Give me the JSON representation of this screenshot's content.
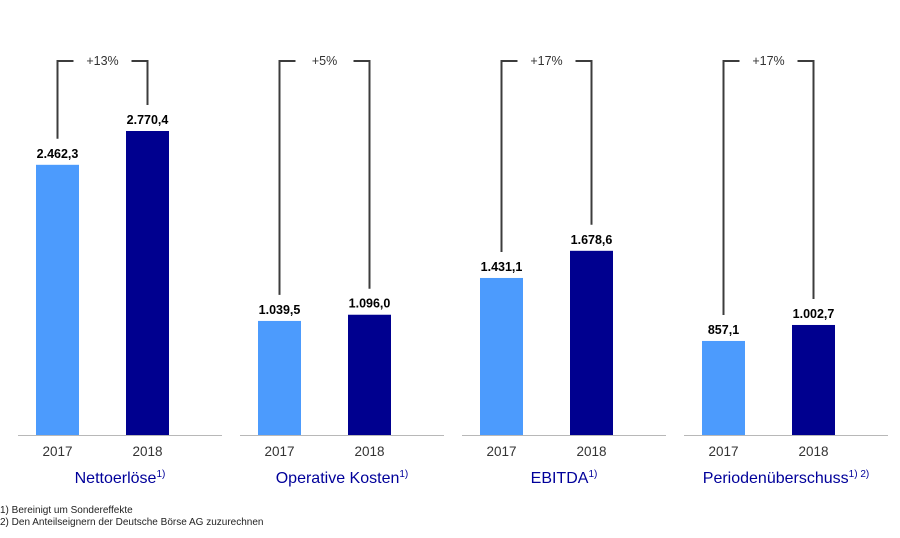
{
  "colors": {
    "y2017": "#4c9bfd",
    "y2018": "#00008f",
    "bracket": "#3c3c3c",
    "axis": "#b8b8b8",
    "category": "#00009a"
  },
  "chart_data": {
    "type": "bar",
    "years": [
      "2017",
      "2018"
    ],
    "groups": [
      {
        "name": "Nettoerlöse",
        "sup": "1)",
        "values": [
          2462.3,
          2770.4
        ],
        "labels": [
          "2.462,3",
          "2.770,4"
        ],
        "change": "+13%"
      },
      {
        "name": "Operative Kosten",
        "sup": "1)",
        "values": [
          1039.5,
          1096.0
        ],
        "labels": [
          "1.039,5",
          "1.096,0"
        ],
        "change": "+5%"
      },
      {
        "name": "EBITDA",
        "sup": "1)",
        "values": [
          1431.1,
          1678.6
        ],
        "labels": [
          "1.431,1",
          "1.678,6"
        ],
        "change": "+17%"
      },
      {
        "name": "Periodenüberschuss",
        "sup": "1) 2)",
        "values": [
          857.1,
          1002.7
        ],
        "labels": [
          "857,1",
          "1.002,7"
        ],
        "change": "+17%"
      }
    ],
    "ylim": [
      0,
      2770.4
    ]
  },
  "footnotes": [
    "1) Bereinigt um Sondereffekte",
    "2) Den Anteilseignern der Deutsche Börse AG zuzurechnen"
  ]
}
